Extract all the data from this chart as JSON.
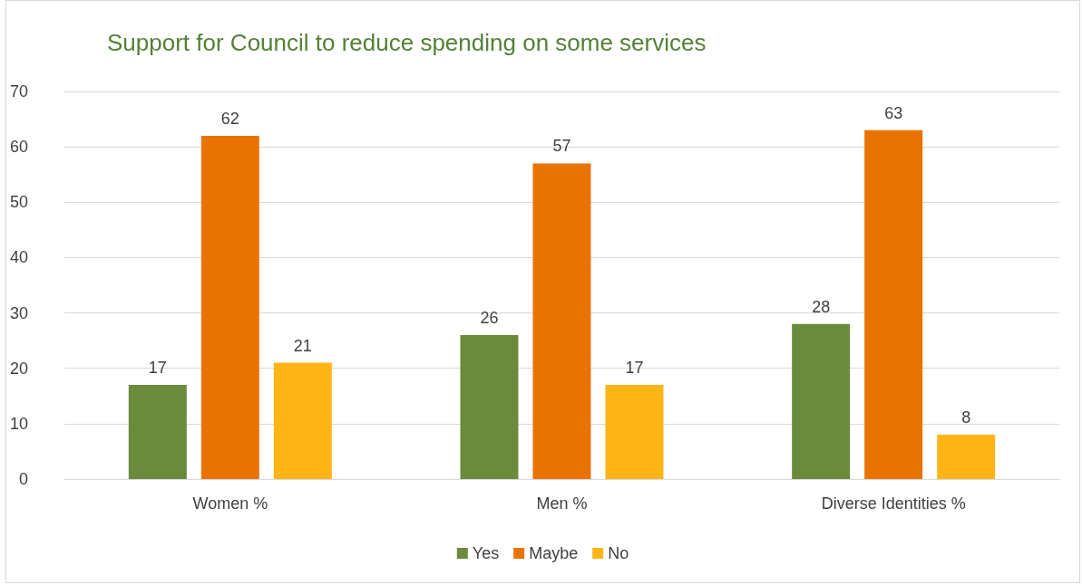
{
  "chart_data": {
    "type": "bar",
    "title": "Support for Council to reduce spending on some services",
    "categories": [
      "Women %",
      "Men %",
      "Diverse Identities %"
    ],
    "series": [
      {
        "name": "Yes",
        "color": "#6a8a3c",
        "values": [
          17,
          26,
          28
        ]
      },
      {
        "name": "Maybe",
        "color": "#e97300",
        "values": [
          62,
          57,
          63
        ]
      },
      {
        "name": "No",
        "color": "#ffb517",
        "values": [
          21,
          17,
          8
        ]
      }
    ],
    "ylim": [
      0,
      70
    ],
    "yticks": [
      0,
      10,
      20,
      30,
      40,
      50,
      60,
      70
    ],
    "grid": "y",
    "legend": "bottom",
    "data_labels": true
  }
}
